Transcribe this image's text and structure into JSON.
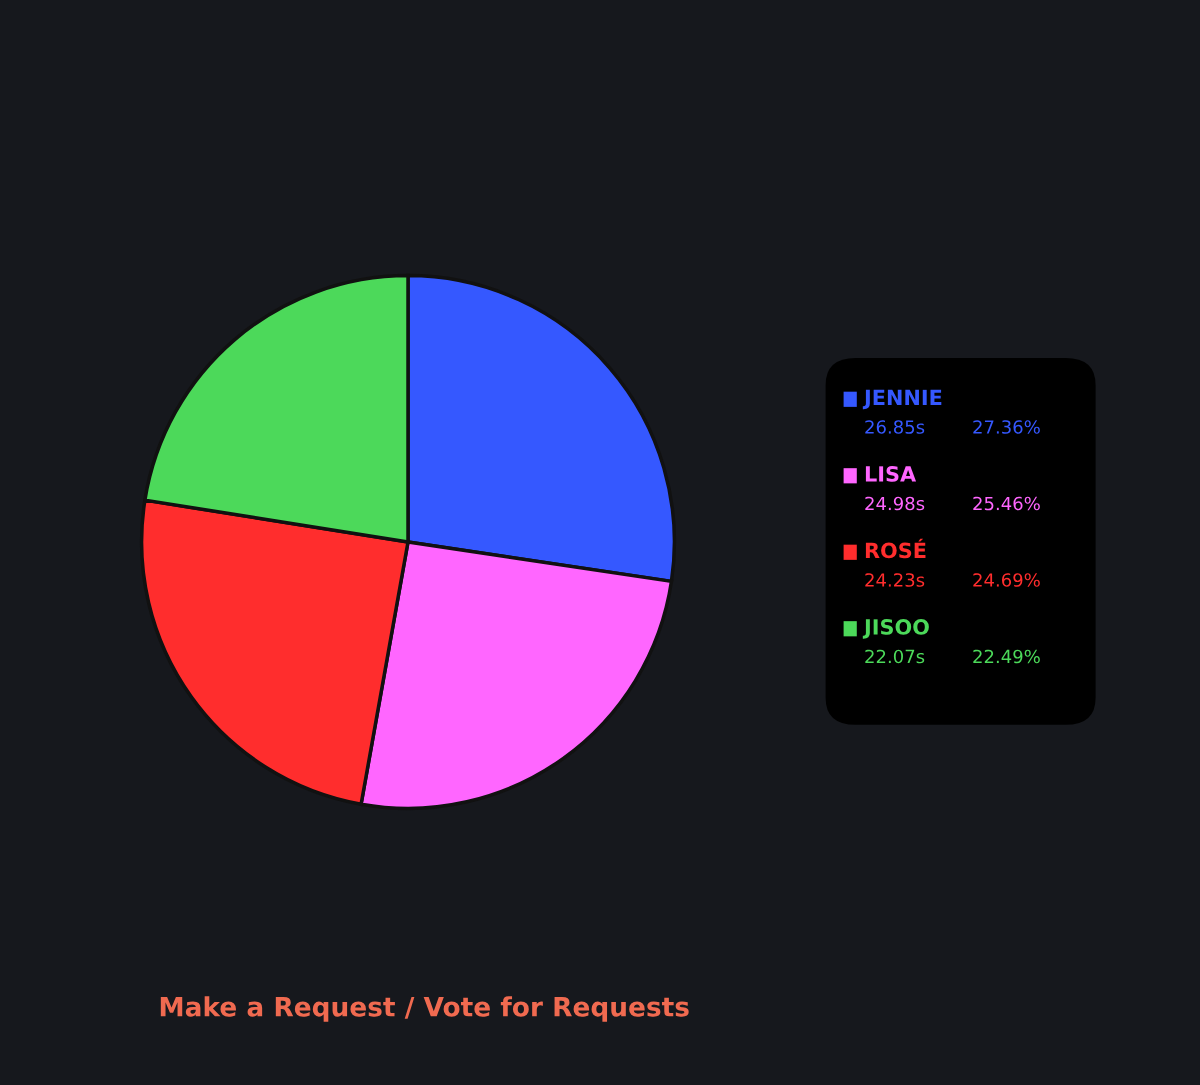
{
  "chart_data": {
    "type": "pie",
    "categories": [
      "JENNIE",
      "LISA",
      "ROSÉ",
      "JISOO"
    ],
    "values": [
      26.85,
      24.98,
      24.23,
      22.07
    ],
    "value_labels": [
      "26.85s",
      "24.98s",
      "24.23s",
      "22.07s"
    ],
    "colors": [
      "#3558ff",
      "#ff66ff",
      "#ff2d2d",
      "#4cd95a"
    ],
    "legend": "right",
    "annotations": [
      "27.36%",
      "25.46%",
      "24.69%",
      "22.49%",
      "Make a Request / Vote for Requests"
    ]
  }
}
